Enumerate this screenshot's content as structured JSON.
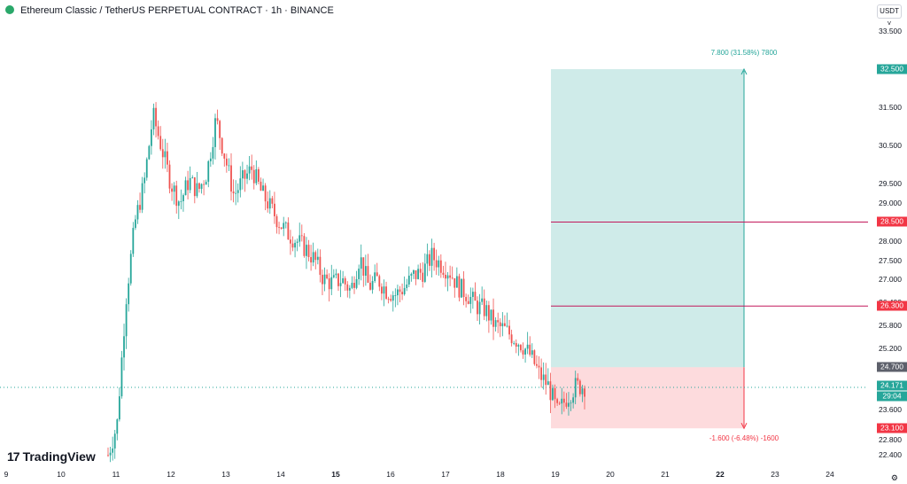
{
  "header": {
    "title": "Ethereum Classic / TetherUS PERPETUAL CONTRACT · 1h · BINANCE",
    "currency": "USDT"
  },
  "price_axis": {
    "ticks": [
      "33.500",
      "32.500",
      "31.500",
      "30.500",
      "29.500",
      "29.000",
      "28.000",
      "27.500",
      "27.000",
      "26.400",
      "25.800",
      "25.200",
      "24.700",
      "23.600",
      "22.800",
      "22.400"
    ],
    "labels": [
      {
        "value": "32.500",
        "color": "#26a69a"
      },
      {
        "value": "28.500",
        "color": "#f23645"
      },
      {
        "value": "26.300",
        "color": "#f23645"
      },
      {
        "value": "24.700",
        "color": "#5d606b"
      },
      {
        "value": "24.171",
        "color": "#26a69a"
      },
      {
        "value": "29:04",
        "color": "#26a69a"
      },
      {
        "value": "23.100",
        "color": "#f23645"
      }
    ]
  },
  "time_axis": {
    "ticks": [
      {
        "label": "9",
        "bold": false
      },
      {
        "label": "10",
        "bold": false
      },
      {
        "label": "11",
        "bold": false
      },
      {
        "label": "12",
        "bold": false
      },
      {
        "label": "13",
        "bold": false
      },
      {
        "label": "14",
        "bold": false
      },
      {
        "label": "15",
        "bold": true
      },
      {
        "label": "16",
        "bold": false
      },
      {
        "label": "17",
        "bold": false
      },
      {
        "label": "18",
        "bold": false
      },
      {
        "label": "19",
        "bold": false
      },
      {
        "label": "20",
        "bold": false
      },
      {
        "label": "21",
        "bold": false
      },
      {
        "label": "22",
        "bold": true
      },
      {
        "label": "23",
        "bold": false
      },
      {
        "label": "24",
        "bold": false
      }
    ]
  },
  "position_tool": {
    "profit_text": "7.800 (31.58%) 7800",
    "loss_text": "-1.600 (-6.48%) -1600",
    "entry": 24.7,
    "target": 32.5,
    "stop": 23.1,
    "profit_color": "#26a69a",
    "loss_color": "#f23645"
  },
  "lines": {
    "levels": [
      28.5,
      26.3
    ],
    "current_price": 24.171
  },
  "branding": {
    "logo_mark": "17",
    "logo_text": "TradingView"
  },
  "settings_icon": "gear-icon",
  "chart_data": {
    "type": "candlestick",
    "y_axis_range": [
      22.2,
      33.8
    ],
    "x_axis_range": [
      "Day 9",
      "Day 24"
    ],
    "price_path": [
      22.4,
      23.2,
      26.5,
      28.5,
      29.5,
      31.3,
      30.4,
      29.5,
      29.0,
      29.6,
      29.3,
      29.8,
      31.2,
      30.2,
      29.2,
      29.6,
      29.9,
      29.3,
      28.9,
      28.5,
      28.2,
      28.0,
      27.8,
      27.5,
      27.0,
      26.9,
      27.0,
      26.7,
      27.6,
      26.8,
      27.0,
      26.7,
      26.6,
      26.8,
      27.1,
      27.2,
      27.6,
      27.4,
      27.2,
      26.8,
      26.6,
      26.3,
      26.2,
      25.8,
      25.7,
      25.5,
      25.3,
      25.0,
      24.5,
      24.2,
      23.5,
      23.9,
      24.2,
      24.2
    ]
  }
}
